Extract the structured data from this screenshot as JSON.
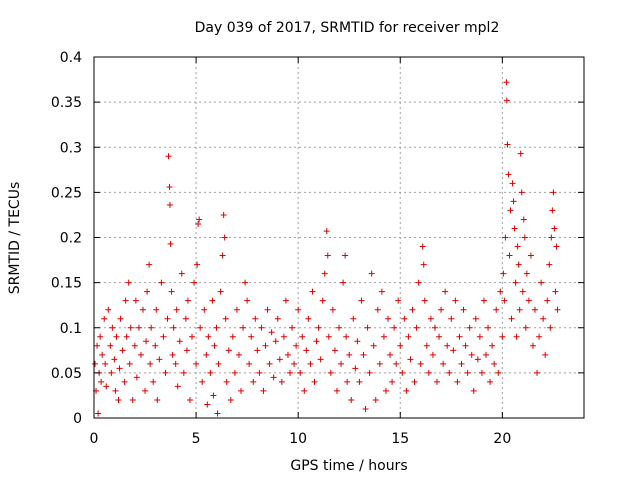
{
  "chart_data": {
    "type": "scatter",
    "title": "Day 039 of 2017, SRMTID for receiver mpl2",
    "xlabel": "GPS time / hours",
    "ylabel": "SRMTID / TECUs",
    "xlim": [
      0,
      24
    ],
    "ylim": [
      0,
      0.4
    ],
    "xticks": [
      0,
      5,
      10,
      15,
      20
    ],
    "xtick_labels": [
      "0",
      "5",
      "10",
      "15",
      "20"
    ],
    "yticks": [
      0,
      0.05,
      0.1,
      0.15,
      0.2,
      0.25,
      0.3,
      0.35,
      0.4
    ],
    "ytick_labels": [
      "0",
      "0.05",
      "0.1",
      "0.15",
      "0.2",
      "0.25",
      "0.3",
      "0.35",
      "0.4"
    ],
    "grid": true,
    "marker": "plus",
    "color": "#e00000",
    "series": [
      {
        "name": "mpl2",
        "points": [
          [
            0.05,
            0.06
          ],
          [
            0.1,
            0.03
          ],
          [
            0.15,
            0.08
          ],
          [
            0.2,
            0.005
          ],
          [
            0.25,
            0.05
          ],
          [
            0.3,
            0.09
          ],
          [
            0.35,
            0.04
          ],
          [
            0.4,
            0.07
          ],
          [
            0.5,
            0.11
          ],
          [
            0.55,
            0.06
          ],
          [
            0.6,
            0.035
          ],
          [
            0.7,
            0.12
          ],
          [
            0.8,
            0.08
          ],
          [
            0.85,
            0.05
          ],
          [
            0.9,
            0.1
          ],
          [
            1.0,
            0.065
          ],
          [
            1.05,
            0.03
          ],
          [
            1.1,
            0.09
          ],
          [
            1.2,
            0.02
          ],
          [
            1.25,
            0.055
          ],
          [
            1.3,
            0.11
          ],
          [
            1.4,
            0.075
          ],
          [
            1.5,
            0.04
          ],
          [
            1.55,
            0.13
          ],
          [
            1.6,
            0.09
          ],
          [
            1.7,
            0.15
          ],
          [
            1.75,
            0.06
          ],
          [
            1.8,
            0.1
          ],
          [
            1.9,
            0.02
          ],
          [
            2.0,
            0.08
          ],
          [
            2.05,
            0.13
          ],
          [
            2.1,
            0.045
          ],
          [
            2.2,
            0.1
          ],
          [
            2.3,
            0.07
          ],
          [
            2.4,
            0.12
          ],
          [
            2.5,
            0.03
          ],
          [
            2.55,
            0.085
          ],
          [
            2.6,
            0.14
          ],
          [
            2.7,
            0.17
          ],
          [
            2.75,
            0.06
          ],
          [
            2.8,
            0.1
          ],
          [
            2.9,
            0.04
          ],
          [
            3.0,
            0.08
          ],
          [
            3.05,
            0.12
          ],
          [
            3.1,
            0.02
          ],
          [
            3.2,
            0.065
          ],
          [
            3.3,
            0.15
          ],
          [
            3.4,
            0.09
          ],
          [
            3.5,
            0.05
          ],
          [
            3.6,
            0.11
          ],
          [
            3.65,
            0.29
          ],
          [
            3.7,
            0.256
          ],
          [
            3.72,
            0.236
          ],
          [
            3.75,
            0.193
          ],
          [
            3.8,
            0.14
          ],
          [
            3.85,
            0.07
          ],
          [
            3.9,
            0.1
          ],
          [
            4.0,
            0.06
          ],
          [
            4.05,
            0.12
          ],
          [
            4.1,
            0.035
          ],
          [
            4.2,
            0.085
          ],
          [
            4.3,
            0.16
          ],
          [
            4.4,
            0.05
          ],
          [
            4.5,
            0.11
          ],
          [
            4.55,
            0.075
          ],
          [
            4.6,
            0.13
          ],
          [
            4.7,
            0.02
          ],
          [
            4.8,
            0.09
          ],
          [
            4.9,
            0.15
          ],
          [
            5.0,
            0.06
          ],
          [
            5.05,
            0.17
          ],
          [
            5.1,
            0.215
          ],
          [
            5.15,
            0.22
          ],
          [
            5.2,
            0.1
          ],
          [
            5.3,
            0.04
          ],
          [
            5.4,
            0.12
          ],
          [
            5.5,
            0.07
          ],
          [
            5.55,
            0.015
          ],
          [
            5.6,
            0.09
          ],
          [
            5.7,
            0.05
          ],
          [
            5.8,
            0.13
          ],
          [
            5.85,
            0.025
          ],
          [
            5.9,
            0.08
          ],
          [
            6.0,
            0.1
          ],
          [
            6.05,
            0.005
          ],
          [
            6.1,
            0.06
          ],
          [
            6.2,
            0.14
          ],
          [
            6.3,
            0.18
          ],
          [
            6.35,
            0.225
          ],
          [
            6.4,
            0.2
          ],
          [
            6.45,
            0.11
          ],
          [
            6.5,
            0.04
          ],
          [
            6.6,
            0.075
          ],
          [
            6.7,
            0.02
          ],
          [
            6.8,
            0.09
          ],
          [
            6.9,
            0.05
          ],
          [
            7.0,
            0.12
          ],
          [
            7.1,
            0.07
          ],
          [
            7.2,
            0.03
          ],
          [
            7.3,
            0.1
          ],
          [
            7.4,
            0.15
          ],
          [
            7.5,
            0.13
          ],
          [
            7.6,
            0.06
          ],
          [
            7.7,
            0.09
          ],
          [
            7.8,
            0.04
          ],
          [
            7.9,
            0.11
          ],
          [
            8.0,
            0.075
          ],
          [
            8.1,
            0.05
          ],
          [
            8.2,
            0.1
          ],
          [
            8.3,
            0.03
          ],
          [
            8.4,
            0.08
          ],
          [
            8.5,
            0.12
          ],
          [
            8.6,
            0.06
          ],
          [
            8.7,
            0.095
          ],
          [
            8.8,
            0.045
          ],
          [
            8.9,
            0.085
          ],
          [
            9.0,
            0.11
          ],
          [
            9.1,
            0.065
          ],
          [
            9.2,
            0.04
          ],
          [
            9.3,
            0.09
          ],
          [
            9.4,
            0.13
          ],
          [
            9.5,
            0.07
          ],
          [
            9.6,
            0.05
          ],
          [
            9.7,
            0.1
          ],
          [
            9.8,
            0.06
          ],
          [
            9.9,
            0.08
          ],
          [
            10.0,
            0.12
          ],
          [
            10.1,
            0.05
          ],
          [
            10.2,
            0.09
          ],
          [
            10.3,
            0.03
          ],
          [
            10.4,
            0.075
          ],
          [
            10.5,
            0.11
          ],
          [
            10.6,
            0.06
          ],
          [
            10.7,
            0.14
          ],
          [
            10.8,
            0.04
          ],
          [
            10.9,
            0.085
          ],
          [
            11.0,
            0.1
          ],
          [
            11.1,
            0.065
          ],
          [
            11.2,
            0.13
          ],
          [
            11.3,
            0.16
          ],
          [
            11.4,
            0.207
          ],
          [
            11.45,
            0.18
          ],
          [
            11.5,
            0.09
          ],
          [
            11.6,
            0.05
          ],
          [
            11.7,
            0.12
          ],
          [
            11.8,
            0.075
          ],
          [
            11.9,
            0.03
          ],
          [
            12.0,
            0.1
          ],
          [
            12.1,
            0.06
          ],
          [
            12.2,
            0.15
          ],
          [
            12.3,
            0.18
          ],
          [
            12.35,
            0.09
          ],
          [
            12.4,
            0.04
          ],
          [
            12.5,
            0.07
          ],
          [
            12.6,
            0.02
          ],
          [
            12.7,
            0.11
          ],
          [
            12.8,
            0.055
          ],
          [
            12.9,
            0.085
          ],
          [
            13.0,
            0.04
          ],
          [
            13.1,
            0.13
          ],
          [
            13.2,
            0.07
          ],
          [
            13.3,
            0.01
          ],
          [
            13.4,
            0.1
          ],
          [
            13.5,
            0.05
          ],
          [
            13.6,
            0.16
          ],
          [
            13.7,
            0.08
          ],
          [
            13.8,
            0.02
          ],
          [
            13.9,
            0.12
          ],
          [
            14.0,
            0.06
          ],
          [
            14.1,
            0.14
          ],
          [
            14.2,
            0.09
          ],
          [
            14.3,
            0.03
          ],
          [
            14.4,
            0.11
          ],
          [
            14.5,
            0.07
          ],
          [
            14.6,
            0.04
          ],
          [
            14.7,
            0.1
          ],
          [
            14.8,
            0.06
          ],
          [
            14.9,
            0.13
          ],
          [
            15.0,
            0.08
          ],
          [
            15.1,
            0.05
          ],
          [
            15.2,
            0.11
          ],
          [
            15.3,
            0.03
          ],
          [
            15.4,
            0.09
          ],
          [
            15.5,
            0.065
          ],
          [
            15.6,
            0.12
          ],
          [
            15.7,
            0.04
          ],
          [
            15.8,
            0.1
          ],
          [
            15.9,
            0.15
          ],
          [
            16.0,
            0.06
          ],
          [
            16.1,
            0.19
          ],
          [
            16.15,
            0.17
          ],
          [
            16.2,
            0.13
          ],
          [
            16.3,
            0.08
          ],
          [
            16.4,
            0.05
          ],
          [
            16.5,
            0.11
          ],
          [
            16.6,
            0.07
          ],
          [
            16.7,
            0.1
          ],
          [
            16.8,
            0.04
          ],
          [
            16.9,
            0.09
          ],
          [
            17.0,
            0.12
          ],
          [
            17.1,
            0.06
          ],
          [
            17.2,
            0.14
          ],
          [
            17.3,
            0.08
          ],
          [
            17.4,
            0.05
          ],
          [
            17.5,
            0.11
          ],
          [
            17.6,
            0.075
          ],
          [
            17.7,
            0.13
          ],
          [
            17.8,
            0.04
          ],
          [
            17.9,
            0.09
          ],
          [
            18.0,
            0.06
          ],
          [
            18.1,
            0.12
          ],
          [
            18.2,
            0.08
          ],
          [
            18.3,
            0.05
          ],
          [
            18.4,
            0.1
          ],
          [
            18.5,
            0.07
          ],
          [
            18.6,
            0.03
          ],
          [
            18.7,
            0.11
          ],
          [
            18.8,
            0.065
          ],
          [
            18.9,
            0.09
          ],
          [
            19.0,
            0.05
          ],
          [
            19.1,
            0.13
          ],
          [
            19.2,
            0.07
          ],
          [
            19.3,
            0.1
          ],
          [
            19.4,
            0.04
          ],
          [
            19.5,
            0.08
          ],
          [
            19.6,
            0.06
          ],
          [
            19.7,
            0.12
          ],
          [
            19.8,
            0.05
          ],
          [
            19.9,
            0.14
          ],
          [
            20.0,
            0.09
          ],
          [
            20.05,
            0.16
          ],
          [
            20.1,
            0.13
          ],
          [
            20.15,
            0.2
          ],
          [
            20.2,
            0.372
          ],
          [
            20.22,
            0.352
          ],
          [
            20.25,
            0.303
          ],
          [
            20.3,
            0.27
          ],
          [
            20.35,
            0.18
          ],
          [
            20.4,
            0.23
          ],
          [
            20.45,
            0.11
          ],
          [
            20.5,
            0.26
          ],
          [
            20.55,
            0.24
          ],
          [
            20.6,
            0.21
          ],
          [
            20.65,
            0.15
          ],
          [
            20.7,
            0.09
          ],
          [
            20.75,
            0.19
          ],
          [
            20.8,
            0.17
          ],
          [
            20.85,
            0.12
          ],
          [
            20.9,
            0.293
          ],
          [
            20.95,
            0.25
          ],
          [
            21.0,
            0.14
          ],
          [
            21.05,
            0.22
          ],
          [
            21.1,
            0.2
          ],
          [
            21.15,
            0.1
          ],
          [
            21.2,
            0.16
          ],
          [
            21.3,
            0.13
          ],
          [
            21.4,
            0.18
          ],
          [
            21.5,
            0.08
          ],
          [
            21.6,
            0.12
          ],
          [
            21.7,
            0.05
          ],
          [
            21.8,
            0.09
          ],
          [
            21.9,
            0.15
          ],
          [
            22.0,
            0.11
          ],
          [
            22.1,
            0.07
          ],
          [
            22.2,
            0.13
          ],
          [
            22.3,
            0.17
          ],
          [
            22.35,
            0.1
          ],
          [
            22.4,
            0.2
          ],
          [
            22.45,
            0.23
          ],
          [
            22.5,
            0.25
          ],
          [
            22.55,
            0.21
          ],
          [
            22.6,
            0.14
          ],
          [
            22.65,
            0.19
          ],
          [
            22.7,
            0.12
          ]
        ]
      }
    ]
  }
}
